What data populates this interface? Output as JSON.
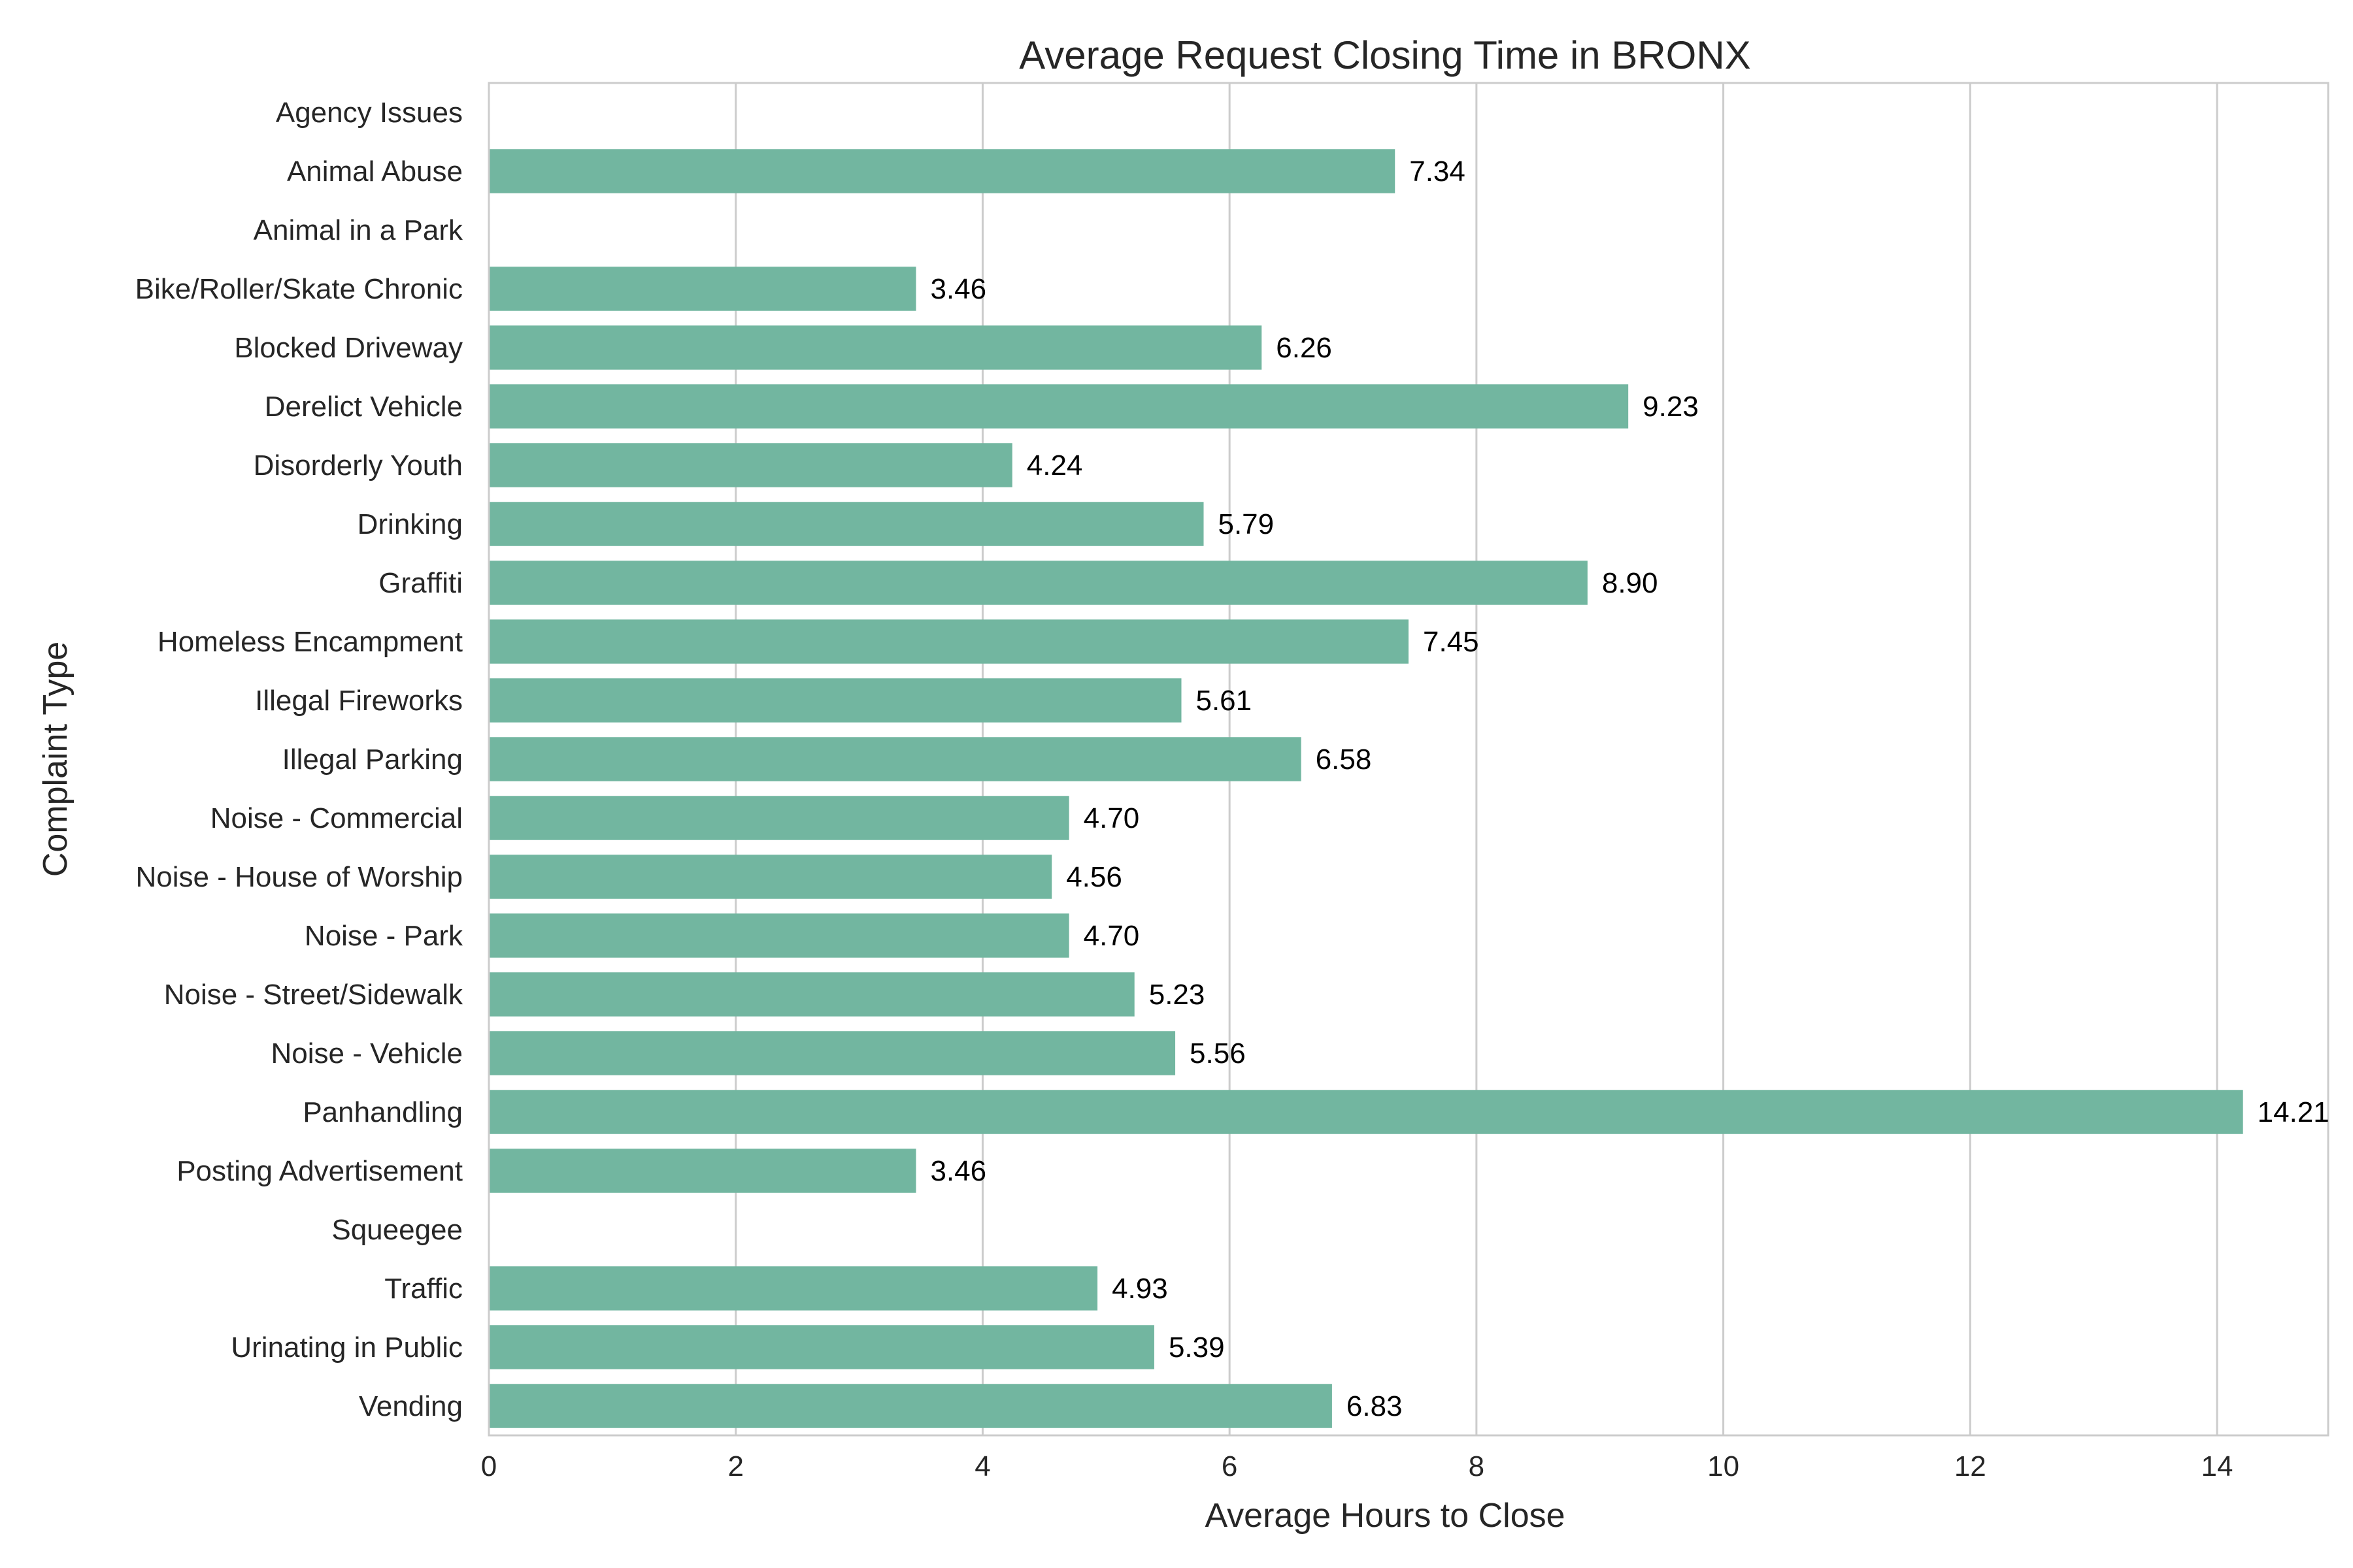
{
  "chart_data": {
    "type": "bar",
    "orientation": "horizontal",
    "title": "Average Request Closing Time in BRONX",
    "xlabel": "Average Hours to Close",
    "ylabel": "Complaint Type",
    "xlim": [
      0,
      14.9
    ],
    "xticks": [
      0,
      2,
      4,
      6,
      8,
      10,
      12,
      14
    ],
    "grid": "vertical",
    "bar_color": "#72b6a0",
    "categories": [
      "Agency Issues",
      "Animal Abuse",
      "Animal in a Park",
      "Bike/Roller/Skate Chronic",
      "Blocked Driveway",
      "Derelict Vehicle",
      "Disorderly Youth",
      "Drinking",
      "Graffiti",
      "Homeless Encampment",
      "Illegal Fireworks",
      "Illegal Parking",
      "Noise - Commercial",
      "Noise - House of Worship",
      "Noise - Park",
      "Noise - Street/Sidewalk",
      "Noise - Vehicle",
      "Panhandling",
      "Posting Advertisement",
      "Squeegee",
      "Traffic",
      "Urinating in Public",
      "Vending"
    ],
    "values": [
      null,
      7.34,
      null,
      3.46,
      6.26,
      9.23,
      4.24,
      5.79,
      8.9,
      7.45,
      5.61,
      6.58,
      4.7,
      4.56,
      4.7,
      5.23,
      5.56,
      14.21,
      3.46,
      null,
      4.93,
      5.39,
      6.83
    ],
    "data_labels": [
      "",
      "7.34",
      "",
      "3.46",
      "6.26",
      "9.23",
      "4.24",
      "5.79",
      "8.90",
      "7.45",
      "5.61",
      "6.58",
      "4.70",
      "4.56",
      "4.70",
      "5.23",
      "5.56",
      "14.21",
      "3.46",
      "",
      "4.93",
      "5.39",
      "6.83"
    ]
  }
}
